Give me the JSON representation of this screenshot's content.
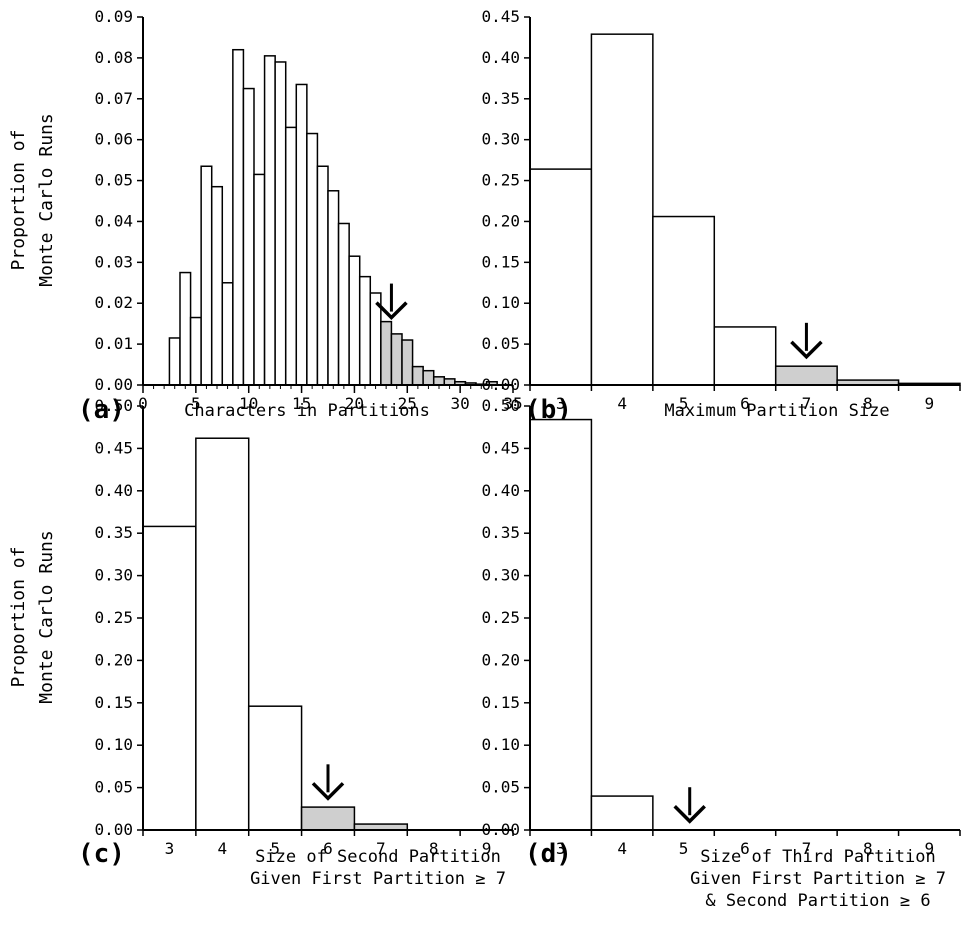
{
  "ylabel_lines": [
    "Proportion of",
    "Monte Carlo Runs"
  ],
  "colors": {
    "bar_fill": "#ffffff",
    "shaded_fill": "#cfcfcf",
    "stroke": "#000000"
  },
  "chart_data": [
    {
      "panel": "(a)",
      "type": "bar",
      "xlabel_lines": [
        "Characters in Partitions"
      ],
      "xlim": [
        0,
        35
      ],
      "ylim": [
        0,
        0.09
      ],
      "x_ticks": [
        0,
        5,
        10,
        15,
        20,
        25,
        30,
        35
      ],
      "x_tick_labels": [
        "0",
        "5",
        "10",
        "15",
        "20",
        "25",
        "30",
        "35"
      ],
      "y_ticks": [
        0,
        0.01,
        0.02,
        0.03,
        0.04,
        0.05,
        0.06,
        0.07,
        0.08,
        0.09
      ],
      "y_tick_labels": [
        "0.00",
        "0.01",
        "0.02",
        "0.03",
        "0.04",
        "0.05",
        "0.06",
        "0.07",
        "0.08",
        "0.09"
      ],
      "x_minor_ticks": true,
      "categories": [
        3,
        4,
        5,
        6,
        7,
        8,
        9,
        10,
        11,
        12,
        13,
        14,
        15,
        16,
        17,
        18,
        19,
        20,
        21,
        22,
        23,
        24,
        25,
        26,
        27,
        28,
        29,
        30,
        31,
        32,
        33
      ],
      "values": [
        0.0115,
        0.0275,
        0.0165,
        0.0535,
        0.0485,
        0.025,
        0.082,
        0.0725,
        0.0515,
        0.0805,
        0.079,
        0.063,
        0.0735,
        0.0615,
        0.0535,
        0.0475,
        0.0395,
        0.0315,
        0.0265,
        0.0225,
        0.0155,
        0.0125,
        0.011,
        0.0045,
        0.0035,
        0.002,
        0.0015,
        0.0008,
        0.0005,
        0.0002,
        0.0008
      ],
      "shaded_from": 23,
      "arrow_at": 23.5,
      "arrow_above_value": 0.016
    },
    {
      "panel": "(b)",
      "type": "bar",
      "xlabel_lines": [
        "Maximum Partition Size"
      ],
      "xlim": [
        2.5,
        9.5
      ],
      "ylim": [
        0,
        0.45
      ],
      "x_ticks": [
        3,
        4,
        5,
        6,
        7,
        8,
        9
      ],
      "x_tick_labels": [
        "3",
        "4",
        "5",
        "6",
        "7",
        "8",
        "9"
      ],
      "y_ticks": [
        0,
        0.05,
        0.1,
        0.15,
        0.2,
        0.25,
        0.3,
        0.35,
        0.4,
        0.45
      ],
      "y_tick_labels": [
        "0.00",
        "0.05",
        "0.10",
        "0.15",
        "0.20",
        "0.25",
        "0.30",
        "0.35",
        "0.40",
        "0.45"
      ],
      "categories": [
        3,
        4,
        5,
        6,
        7,
        8,
        9
      ],
      "values": [
        0.264,
        0.429,
        0.206,
        0.071,
        0.023,
        0.006,
        0.002
      ],
      "shaded_from": 7,
      "arrow_at": 7,
      "arrow_above_value": 0.032
    },
    {
      "panel": "(c)",
      "type": "bar",
      "xlabel_lines": [
        "Size of Second Partition",
        "Given First Partition ≥ 7"
      ],
      "xlim": [
        2.5,
        9.5
      ],
      "ylim": [
        0,
        0.5
      ],
      "x_ticks": [
        3,
        4,
        5,
        6,
        7,
        8,
        9
      ],
      "x_tick_labels": [
        "3",
        "4",
        "5",
        "6",
        "7",
        "8",
        "9"
      ],
      "y_ticks": [
        0,
        0.05,
        0.1,
        0.15,
        0.2,
        0.25,
        0.3,
        0.35,
        0.4,
        0.45,
        0.5
      ],
      "y_tick_labels": [
        "0.00",
        "0.05",
        "0.10",
        "0.15",
        "0.20",
        "0.25",
        "0.30",
        "0.35",
        "0.40",
        "0.45",
        "0.50"
      ],
      "categories": [
        3,
        4,
        5,
        6,
        7,
        8,
        9
      ],
      "values": [
        0.358,
        0.462,
        0.146,
        0.027,
        0.007,
        0.0,
        0.0
      ],
      "shaded_from": 6,
      "arrow_at": 6,
      "arrow_above_value": 0.035
    },
    {
      "panel": "(d)",
      "type": "bar",
      "xlabel_lines": [
        "Size of Third Partition",
        "Given First Partition ≥ 7",
        "& Second Partition ≥ 6"
      ],
      "xlim": [
        2.5,
        9.5
      ],
      "ylim": [
        0,
        0.5
      ],
      "x_ticks": [
        3,
        4,
        5,
        6,
        7,
        8,
        9
      ],
      "x_tick_labels": [
        "3",
        "4",
        "5",
        "6",
        "7",
        "8",
        "9"
      ],
      "y_ticks": [
        0,
        0.05,
        0.1,
        0.15,
        0.2,
        0.25,
        0.3,
        0.35,
        0.4,
        0.45,
        0.5
      ],
      "y_tick_labels": [
        "0.00",
        "0.05",
        "0.10",
        "0.15",
        "0.20",
        "0.25",
        "0.30",
        "0.35",
        "0.40",
        "0.45",
        "0.50"
      ],
      "categories": [
        3,
        4,
        5,
        6,
        7,
        8,
        9
      ],
      "values": [
        0.484,
        0.04,
        0.0,
        0.0,
        0.0,
        0.0,
        0.0
      ],
      "shaded_from": 5,
      "arrow_at": 5.1,
      "arrow_above_value": 0.008
    }
  ]
}
